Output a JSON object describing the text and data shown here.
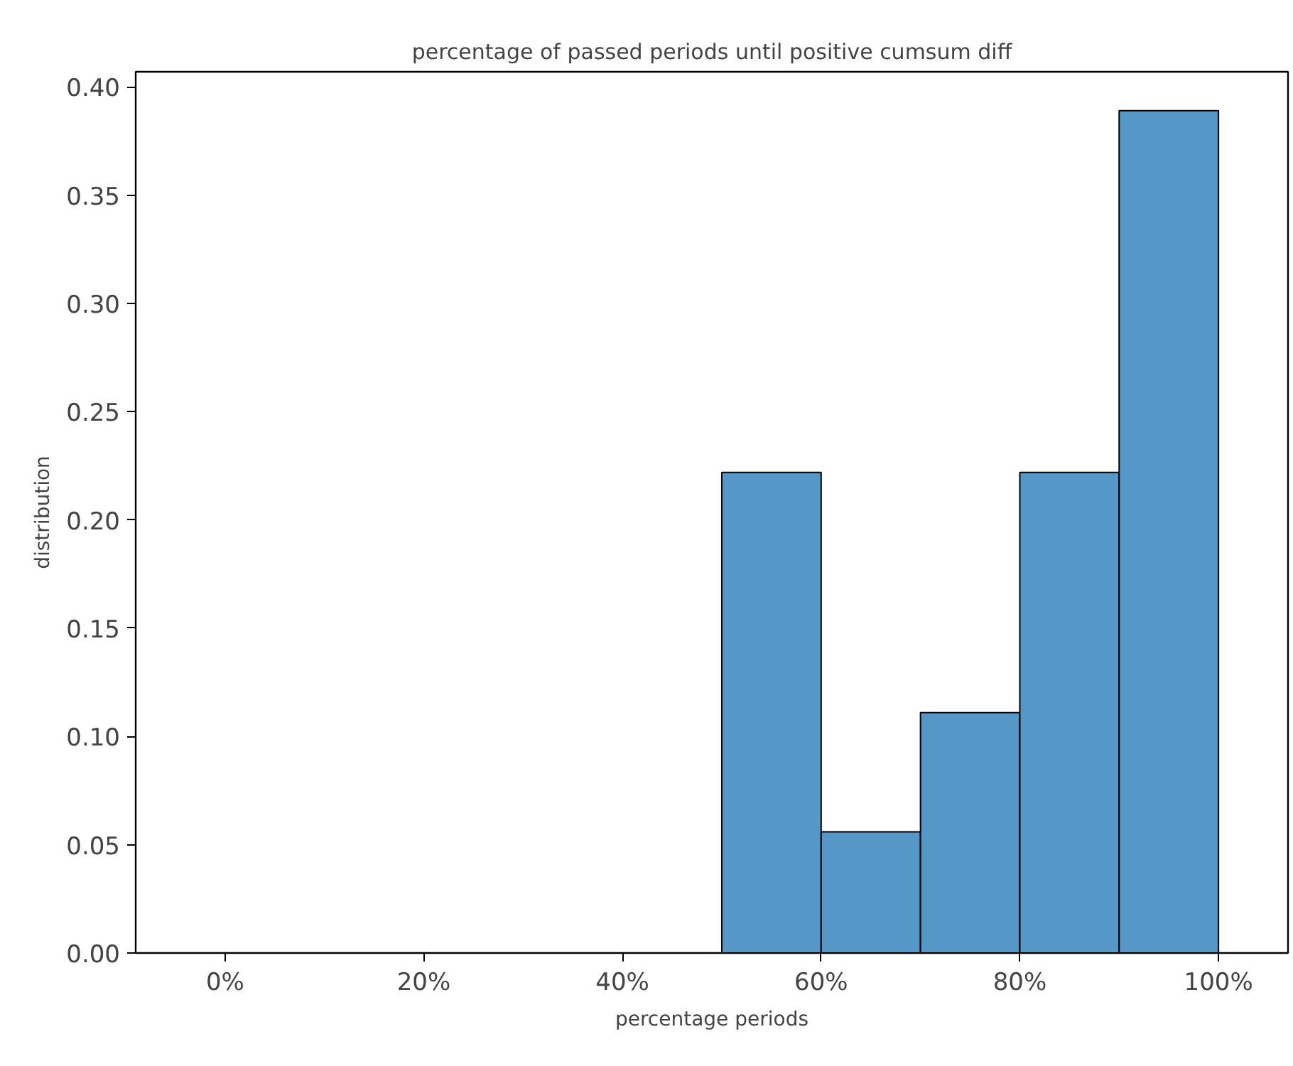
{
  "chart_data": {
    "type": "histogram",
    "title": "percentage of passed periods until positive cumsum diff",
    "xlabel": "percentage periods",
    "ylabel": "distribution",
    "bins": [
      50,
      60,
      70,
      80,
      90,
      100
    ],
    "values": [
      0.222,
      0.056,
      0.111,
      0.222,
      0.389
    ],
    "color": "#5597c6",
    "xlim": [
      -9,
      107
    ],
    "ylim": [
      0,
      0.407
    ],
    "xticks": [
      {
        "value": 0,
        "label": "0%"
      },
      {
        "value": 20,
        "label": "20%"
      },
      {
        "value": 40,
        "label": "40%"
      },
      {
        "value": 60,
        "label": "60%"
      },
      {
        "value": 80,
        "label": "80%"
      },
      {
        "value": 100,
        "label": "100%"
      }
    ],
    "yticks": [
      {
        "value": 0,
        "label": "0.00"
      },
      {
        "value": 0.05,
        "label": "0.05"
      },
      {
        "value": 0.1,
        "label": "0.10"
      },
      {
        "value": 0.15,
        "label": "0.15"
      },
      {
        "value": 0.2,
        "label": "0.20"
      },
      {
        "value": 0.25,
        "label": "0.25"
      },
      {
        "value": 0.3,
        "label": "0.30"
      },
      {
        "value": 0.35,
        "label": "0.35"
      },
      {
        "value": 0.4,
        "label": "0.40"
      }
    ],
    "grid": false
  }
}
